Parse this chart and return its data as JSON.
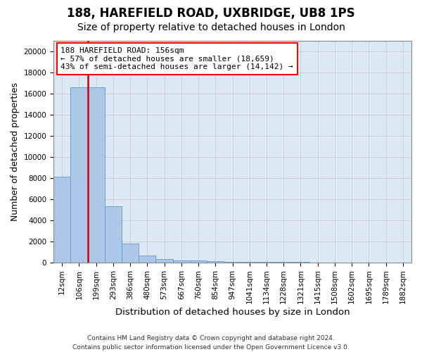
{
  "title": "188, HAREFIELD ROAD, UXBRIDGE, UB8 1PS",
  "subtitle": "Size of property relative to detached houses in London",
  "xlabel": "Distribution of detached houses by size in London",
  "ylabel": "Number of detached properties",
  "bar_facecolor": "#aec6e8",
  "bar_edgecolor": "#5b9bd5",
  "grid_color": "#cccccc",
  "background_color": "#dde8f5",
  "vline_color": "#cc0000",
  "vline_lw": 1.8,
  "vline_x": 1.5,
  "annotation_line1": "188 HAREFIELD ROAD: 156sqm",
  "annotation_line2": "← 57% of detached houses are smaller (18,659)",
  "annotation_line3": "43% of semi-detached houses are larger (14,142) →",
  "bins": [
    "12sqm",
    "106sqm",
    "199sqm",
    "293sqm",
    "386sqm",
    "480sqm",
    "573sqm",
    "667sqm",
    "760sqm",
    "854sqm",
    "947sqm",
    "1041sqm",
    "1134sqm",
    "1228sqm",
    "1321sqm",
    "1415sqm",
    "1508sqm",
    "1602sqm",
    "1695sqm",
    "1789sqm",
    "1882sqm"
  ],
  "values": [
    8100,
    16600,
    16600,
    5300,
    1800,
    650,
    350,
    230,
    175,
    125,
    95,
    75,
    60,
    45,
    35,
    25,
    18,
    13,
    9,
    7,
    5
  ],
  "ylim": [
    0,
    21000
  ],
  "yticks": [
    0,
    2000,
    4000,
    6000,
    8000,
    10000,
    12000,
    14000,
    16000,
    18000,
    20000
  ],
  "title_fontsize": 12,
  "subtitle_fontsize": 10,
  "xlabel_fontsize": 9.5,
  "ylabel_fontsize": 9,
  "tick_fontsize": 7.5,
  "annotation_fontsize": 8,
  "footnote_fontsize": 6.5,
  "footnote": "Contains HM Land Registry data © Crown copyright and database right 2024.\nContains public sector information licensed under the Open Government Licence v3.0."
}
